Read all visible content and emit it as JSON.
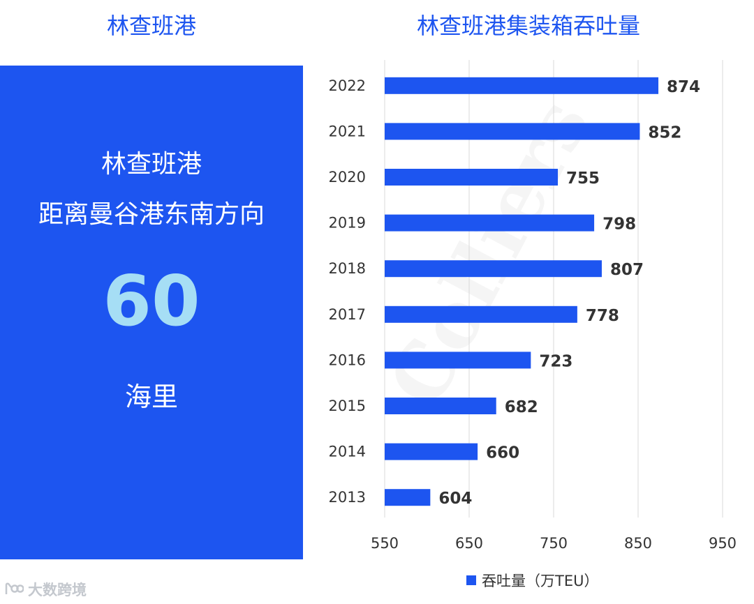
{
  "left_title": "林查班港",
  "right_title": "林查班港集装箱吞吐量",
  "panel": {
    "line1": "林查班港",
    "line2": "距离曼谷港东南方向",
    "number": "60",
    "unit": "海里"
  },
  "watermark": {
    "logo_text": "大数跨境",
    "background_mark": "Colliers"
  },
  "legend": {
    "label": "吞吐量（万TEU）"
  },
  "colors": {
    "bar": "#1d55f0",
    "panel_bg": "#1d55f0",
    "number": "#a6def5",
    "label": "#333333",
    "grid": "#d9d9d9"
  },
  "chart_data": {
    "type": "bar",
    "orientation": "horizontal",
    "title": "林查班港集装箱吞吐量",
    "categories": [
      "2022",
      "2021",
      "2020",
      "2019",
      "2018",
      "2017",
      "2016",
      "2015",
      "2014",
      "2013"
    ],
    "series": [
      {
        "name": "吞吐量（万TEU）",
        "values": [
          874,
          852,
          755,
          798,
          807,
          778,
          723,
          682,
          660,
          604
        ]
      }
    ],
    "xlim": [
      550,
      950
    ],
    "xticks": [
      550,
      650,
      750,
      850,
      950
    ],
    "grid": true,
    "legend": "bottom",
    "data_labels": true
  }
}
